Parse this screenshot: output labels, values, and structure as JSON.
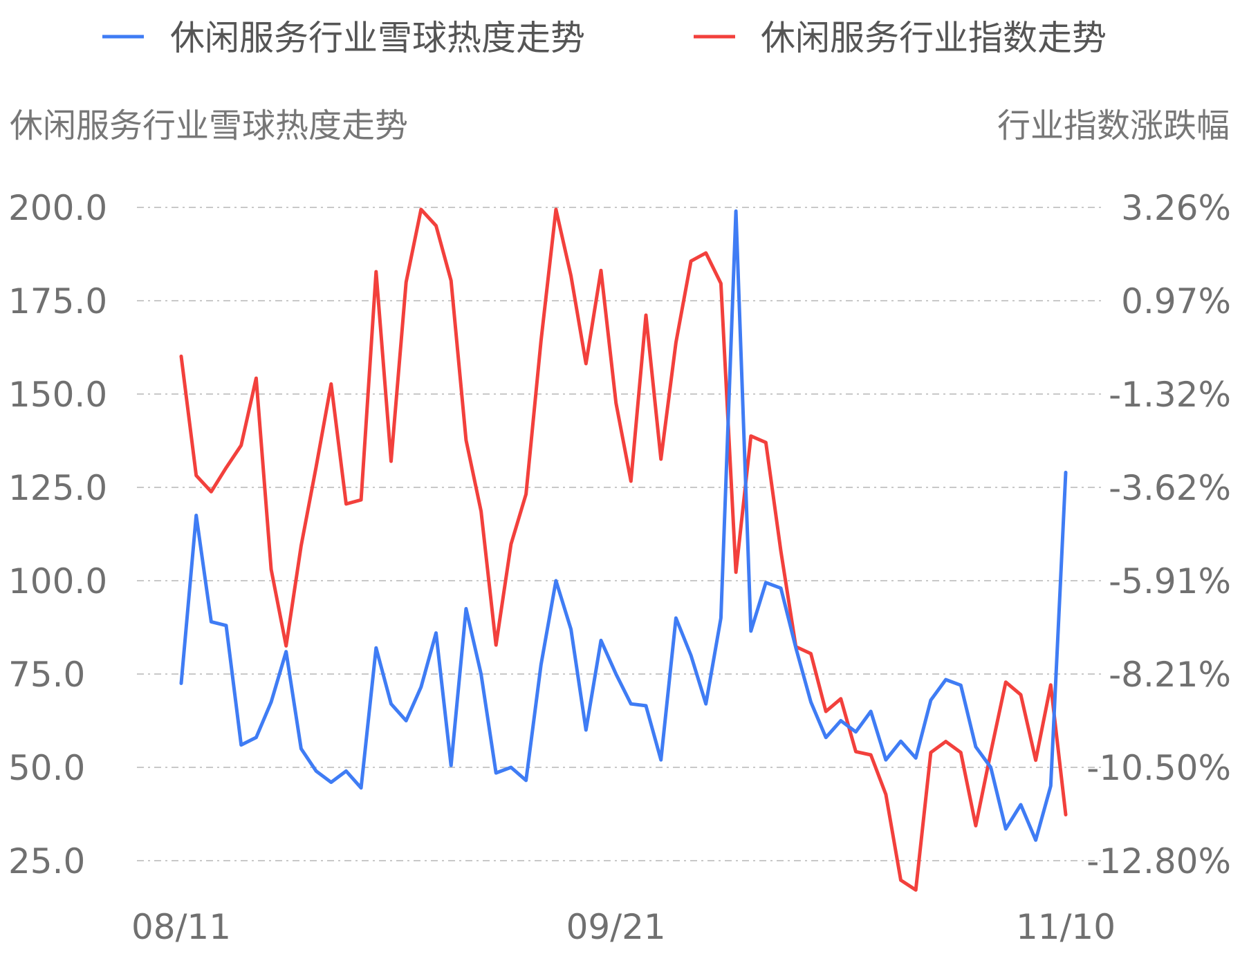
{
  "chart_data": {
    "type": "line",
    "legend": [
      "休闲服务行业雪球热度走势",
      "休闲服务行业指数走势"
    ],
    "legend_position": "top",
    "y_left_title": "休闲服务行业雪球热度走势",
    "y_right_title": "行业指数涨跌幅",
    "y_left_ticks": [
      "200.0",
      "175.0",
      "150.0",
      "125.0",
      "100.0",
      "75.0",
      "50.0",
      "25.0"
    ],
    "y_right_ticks": [
      "3.26%",
      "0.97%",
      "-1.32%",
      "-3.62%",
      "-5.91%",
      "-8.21%",
      "-10.50%",
      "-12.80%"
    ],
    "ylim_left": [
      25,
      200
    ],
    "ylim_right": [
      -12.8,
      3.26
    ],
    "x_labels": [
      "08/11",
      "09/21",
      "11/10"
    ],
    "x_label_index": [
      0,
      29,
      59
    ],
    "grid": true,
    "series": [
      {
        "name": "休闲服务行业雪球热度走势",
        "axis": "left",
        "color": "#3f7cf4",
        "values": [
          72.5,
          117.5,
          89.0,
          88.0,
          56.0,
          58.0,
          67.5,
          81.0,
          55.0,
          49.0,
          46.0,
          49.0,
          44.5,
          82.0,
          67.0,
          62.5,
          71.5,
          86.0,
          50.5,
          92.5,
          75.0,
          48.5,
          50.0,
          46.5,
          77.5,
          100.0,
          87.0,
          60.0,
          84.0,
          75.0,
          67.0,
          66.5,
          52.0,
          90.0,
          80.0,
          67.0,
          90.0,
          199.0,
          86.5,
          99.5,
          98.0,
          82.0,
          67.5,
          58.0,
          62.5,
          59.5,
          65.0,
          52.0,
          57.0,
          52.5,
          68.0,
          73.5,
          72.0,
          55.5,
          50.0,
          33.5,
          40.0,
          30.5,
          45.0,
          129.0
        ]
      },
      {
        "name": "休闲服务行业指数走势",
        "axis": "right",
        "color": "#f2403c",
        "values": [
          -0.4,
          -3.33,
          -3.73,
          -3.14,
          -2.59,
          -0.94,
          -5.64,
          -7.52,
          -5.06,
          -3.12,
          -1.08,
          -4.03,
          -3.93,
          1.68,
          -2.98,
          1.42,
          3.21,
          2.81,
          1.46,
          -2.46,
          -4.21,
          -7.5,
          -5.02,
          -3.79,
          -0.02,
          3.21,
          1.58,
          -0.58,
          1.71,
          -1.55,
          -3.47,
          0.61,
          -2.93,
          -0.06,
          1.94,
          2.14,
          1.39,
          -5.71,
          -2.36,
          -2.52,
          -5.19,
          -7.54,
          -7.71,
          -9.13,
          -8.82,
          -10.12,
          -10.2,
          -11.17,
          -13.28,
          -13.52,
          -10.14,
          -9.87,
          -10.14,
          -11.94,
          -10.14,
          -8.41,
          -8.72,
          -10.33,
          -8.48,
          -11.67
        ]
      }
    ]
  }
}
